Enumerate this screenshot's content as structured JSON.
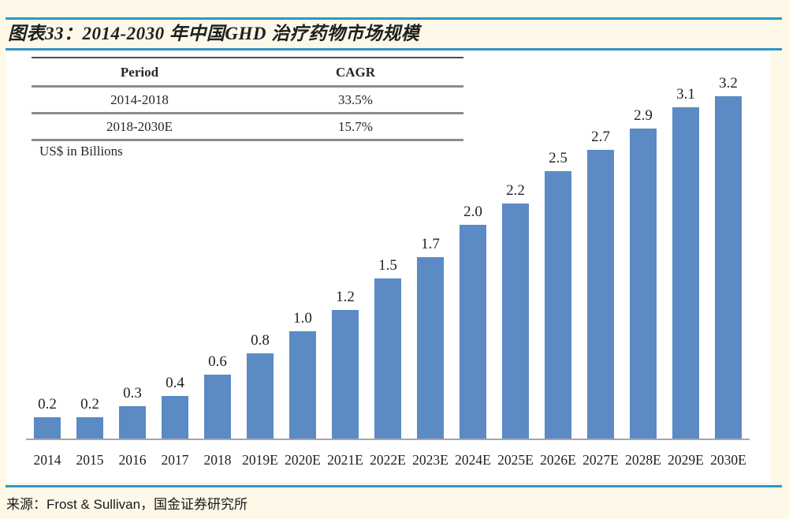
{
  "page": {
    "title": "图表33：2014-2030 年中国GHD 治疗药物市场规模",
    "source_label": "来源：Frost & Sullivan，国金证券研究所",
    "accent_color": "#2E96C7",
    "background_color": "#FDF8E8"
  },
  "summary_table": {
    "headers": {
      "period": "Period",
      "cagr": "CAGR"
    },
    "rows": [
      {
        "period": "2014-2018",
        "cagr": "33.5%"
      },
      {
        "period": "2018-2030E",
        "cagr": "15.7%"
      }
    ],
    "unit_note": "US$ in Billions"
  },
  "chart_data": {
    "type": "bar",
    "title": "图表33：2014-2030 年中国GHD 治疗药物市场规模",
    "ylabel": "US$ in Billions",
    "xlabel": "",
    "categories": [
      "2014",
      "2015",
      "2016",
      "2017",
      "2018",
      "2019E",
      "2020E",
      "2021E",
      "2022E",
      "2023E",
      "2024E",
      "2025E",
      "2026E",
      "2027E",
      "2028E",
      "2029E",
      "2030E"
    ],
    "values": [
      0.2,
      0.2,
      0.3,
      0.4,
      0.6,
      0.8,
      1.0,
      1.2,
      1.5,
      1.7,
      2.0,
      2.2,
      2.5,
      2.7,
      2.9,
      3.1,
      3.2
    ],
    "data_labels": true,
    "ylim": [
      0,
      3.6
    ],
    "grid": false,
    "legend": false,
    "bar_color": "#5B8AC5",
    "annotations": [
      {
        "label": "CAGR 2014-2018",
        "value": "33.5%"
      },
      {
        "label": "CAGR 2018-2030E",
        "value": "15.7%"
      }
    ]
  }
}
